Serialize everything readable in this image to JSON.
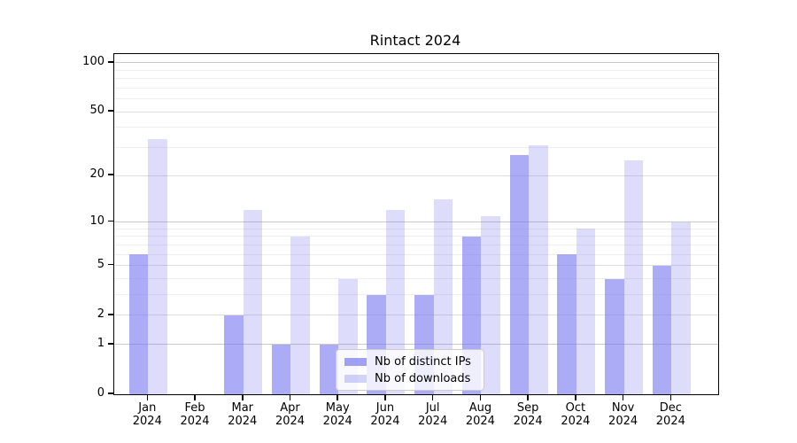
{
  "chart_data": {
    "type": "bar",
    "title": "Rintact 2024",
    "categories": [
      "Jan",
      "Feb",
      "Mar",
      "Apr",
      "May",
      "Jun",
      "Jul",
      "Aug",
      "Sep",
      "Oct",
      "Nov",
      "Dec"
    ],
    "category_year": "2024",
    "series": [
      {
        "name": "Nb of distinct IPs",
        "color": "#7979f0",
        "alpha": 0.62,
        "values": [
          6,
          0,
          2,
          1,
          1,
          3,
          3,
          8,
          27,
          6,
          4,
          5
        ]
      },
      {
        "name": "Nb of downloads",
        "color": "#7979f0",
        "alpha": 0.25,
        "values": [
          34,
          0,
          12,
          8,
          4,
          12,
          14,
          11,
          31,
          9,
          25,
          10
        ]
      }
    ],
    "xlabel": "",
    "ylabel": "",
    "yticks": [
      0,
      1,
      2,
      5,
      10,
      20,
      50,
      100
    ],
    "minor_gridline_values": [
      3,
      4,
      6,
      7,
      8,
      9,
      30,
      40,
      60,
      70,
      80,
      90
    ],
    "strong_gridline_values": [
      1,
      10,
      100
    ],
    "scale": "log10(1+v)",
    "ylim": [
      0,
      113
    ],
    "grid": true,
    "legend_position": "lower center",
    "background_color": "#ffffff",
    "axis_color": "#000000"
  }
}
